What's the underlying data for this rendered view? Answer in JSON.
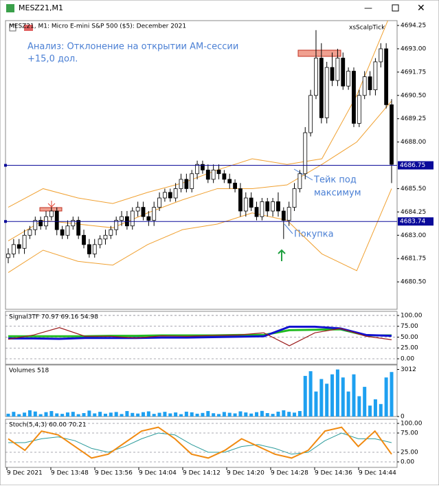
{
  "window": {
    "title": "MESZ21,M1"
  },
  "time_axis": [
    "9 Dec 2021",
    "9 Dec 13:48",
    "9 Dec 13:56",
    "9 Dec 14:04",
    "9 Dec 14:12",
    "9 Dec 14:20",
    "9 Dec 14:28",
    "9 Dec 14:36",
    "9 Dec 14:44"
  ],
  "annotations": {
    "analysis": [
      "Анализ: Отклонение на открытии АМ-сессии",
      "+15,0 дол."
    ],
    "take": [
      "Тейк под",
      "максимум"
    ],
    "buy": "Покупка"
  },
  "chart_data": [
    {
      "type": "candlestick",
      "title": "MESZ21, M1:  Micro E-mini S&P 500 ($5): December 2021",
      "indicator": "xsScalpTick",
      "ylim": [
        4679.03,
        4694.51
      ],
      "yticks": [
        4694.25,
        {
          "value": 4693,
          "label": "4693.00"
        },
        4691.75,
        {
          "value": 4690.5,
          "label": "4690.50"
        },
        4689.25,
        {
          "value": 4688,
          "label": "4688.00"
        },
        {
          "value": 4685.5,
          "label": "4685.50"
        },
        4684.25,
        {
          "value": 4683,
          "label": "4683.00"
        },
        4681.75,
        {
          "value": 4680.5,
          "label": "4680.50"
        }
      ],
      "hlines": [
        4686.75,
        4683.74
      ],
      "hline_color": "#0a0a9a",
      "up_color": "#ffffff",
      "down_color": "#000000",
      "candles": [
        [
          4681.8,
          4682.3,
          4681.5,
          4682.0
        ],
        [
          4682.0,
          4682.8,
          4681.8,
          4682.5
        ],
        [
          4682.5,
          4682.8,
          4682.0,
          4682.3
        ],
        [
          4682.3,
          4683.3,
          4682.0,
          4683.0
        ],
        [
          4683.0,
          4683.5,
          4682.8,
          4683.3
        ],
        [
          4683.3,
          4684.0,
          4683.0,
          4683.8
        ],
        [
          4683.8,
          4684.0,
          4683.3,
          4683.5
        ],
        [
          4683.5,
          4684.3,
          4683.3,
          4684.0
        ],
        [
          4684.0,
          4684.5,
          4683.8,
          4684.3
        ],
        [
          4684.3,
          4684.5,
          4683.0,
          4683.3
        ],
        [
          4683.3,
          4683.5,
          4682.8,
          4683.0
        ],
        [
          4683.0,
          4683.8,
          4682.8,
          4683.5
        ],
        [
          4683.5,
          4684.0,
          4683.3,
          4683.8
        ],
        [
          4683.8,
          4684.0,
          4682.8,
          4683.0
        ],
        [
          4683.0,
          4683.3,
          4682.3,
          4682.5
        ],
        [
          4682.5,
          4682.8,
          4681.8,
          4682.0
        ],
        [
          4682.0,
          4682.8,
          4681.8,
          4682.5
        ],
        [
          4682.5,
          4683.0,
          4682.3,
          4682.8
        ],
        [
          4682.8,
          4683.3,
          4682.5,
          4683.0
        ],
        [
          4683.0,
          4683.5,
          4682.8,
          4683.3
        ],
        [
          4683.3,
          4684.0,
          4683.0,
          4683.8
        ],
        [
          4683.8,
          4684.3,
          4683.5,
          4684.0
        ],
        [
          4684.0,
          4684.3,
          4683.3,
          4683.5
        ],
        [
          4683.5,
          4684.5,
          4683.3,
          4684.3
        ],
        [
          4684.3,
          4684.8,
          4684.0,
          4684.5
        ],
        [
          4684.5,
          4684.8,
          4683.8,
          4684.0
        ],
        [
          4684.0,
          4684.3,
          4683.5,
          4683.8
        ],
        [
          4683.8,
          4684.8,
          4683.5,
          4684.5
        ],
        [
          4684.5,
          4685.3,
          4684.3,
          4685.0
        ],
        [
          4685.0,
          4685.5,
          4684.8,
          4685.3
        ],
        [
          4685.3,
          4685.5,
          4684.8,
          4685.0
        ],
        [
          4685.0,
          4685.8,
          4684.8,
          4685.5
        ],
        [
          4685.5,
          4686.3,
          4685.3,
          4686.0
        ],
        [
          4686.0,
          4686.3,
          4685.3,
          4685.5
        ],
        [
          4685.5,
          4686.5,
          4685.3,
          4686.3
        ],
        [
          4686.3,
          4687.0,
          4686.0,
          4686.8
        ],
        [
          4686.8,
          4687.0,
          4686.3,
          4686.5
        ],
        [
          4686.5,
          4686.8,
          4685.8,
          4686.0
        ],
        [
          4686.0,
          4686.8,
          4685.8,
          4686.5
        ],
        [
          4686.5,
          4686.8,
          4686.0,
          4686.3
        ],
        [
          4686.3,
          4686.5,
          4685.8,
          4686.0
        ],
        [
          4686.0,
          4686.3,
          4685.5,
          4685.8
        ],
        [
          4685.8,
          4686.0,
          4685.3,
          4685.5
        ],
        [
          4685.5,
          4685.8,
          4684.0,
          4684.3
        ],
        [
          4684.3,
          4685.3,
          4684.0,
          4685.0
        ],
        [
          4685.0,
          4685.3,
          4684.3,
          4684.5
        ],
        [
          4684.5,
          4684.8,
          4683.8,
          4684.0
        ],
        [
          4684.0,
          4685.0,
          4683.8,
          4684.8
        ],
        [
          4684.8,
          4685.0,
          4684.0,
          4684.3
        ],
        [
          4684.3,
          4685.0,
          4684.0,
          4684.8
        ],
        [
          4684.8,
          4685.3,
          4684.0,
          4684.3
        ],
        [
          4684.3,
          4684.5,
          4682.8,
          4683.8
        ],
        [
          4683.8,
          4684.8,
          4683.5,
          4684.5
        ],
        [
          4684.5,
          4685.8,
          4684.3,
          4685.5
        ],
        [
          4685.5,
          4686.5,
          4685.3,
          4686.3
        ],
        [
          4686.3,
          4688.8,
          4686.0,
          4688.5
        ],
        [
          4688.5,
          4690.8,
          4688.3,
          4690.5
        ],
        [
          4690.5,
          4694.0,
          4690.3,
          4692.5
        ],
        [
          4692.5,
          4693.3,
          4689.0,
          4689.3
        ],
        [
          4689.3,
          4692.3,
          4689.0,
          4692.0
        ],
        [
          4692.0,
          4692.8,
          4691.0,
          4691.3
        ],
        [
          4691.3,
          4693.0,
          4691.0,
          4692.5
        ],
        [
          4692.5,
          4692.8,
          4690.8,
          4691.0
        ],
        [
          4691.0,
          4692.0,
          4690.8,
          4691.8
        ],
        [
          4691.8,
          4692.0,
          4688.8,
          4689.0
        ],
        [
          4689.0,
          4690.8,
          4688.8,
          4690.5
        ],
        [
          4690.5,
          4691.8,
          4690.3,
          4691.5
        ],
        [
          4691.5,
          4691.8,
          4690.5,
          4690.8
        ],
        [
          4690.8,
          4692.5,
          4690.5,
          4692.3
        ],
        [
          4692.3,
          4693.3,
          4692.0,
          4693.0
        ],
        [
          4693.0,
          4693.3,
          4689.8,
          4690.0
        ],
        [
          4690.0,
          4690.3,
          4685.8,
          4686.8
        ]
      ],
      "bands": [
        {
          "color": "#f0a030",
          "values": [
            4684.5,
            4685.5,
            4685.0,
            4684.7,
            4685.3,
            4685.8,
            4686.5,
            4687.1,
            4686.8,
            4687.1,
            4690.5,
            4695.0
          ]
        },
        {
          "color": "#f0a030",
          "values": [
            4682.7,
            4683.8,
            4683.6,
            4683.4,
            4684.2,
            4684.9,
            4685.5,
            4685.5,
            4685.7,
            4686.8,
            4688.0,
            4690.2
          ]
        },
        {
          "color": "#f0a030",
          "values": [
            4681.0,
            4682.2,
            4681.6,
            4681.4,
            4682.5,
            4683.3,
            4683.6,
            4684.2,
            4683.8,
            4682.0,
            4681.1,
            4685.5
          ]
        }
      ]
    },
    {
      "type": "line",
      "title": "Signal3TF 70.97 69.16 54.98",
      "ylim": [
        -12.7,
        109.5
      ],
      "yticks": [
        {
          "value": 100,
          "label": "100.00"
        },
        {
          "value": 75,
          "label": "75.00"
        },
        {
          "value": 50,
          "label": "50.00"
        },
        {
          "value": 25,
          "label": "25.00"
        },
        {
          "value": 0,
          "label": "0.00"
        }
      ],
      "series": [
        {
          "color": "#22bb22",
          "width": 3,
          "values": [
            52,
            52,
            52,
            52,
            53,
            53,
            54,
            54,
            54,
            55,
            55,
            66,
            67,
            68,
            54,
            54
          ]
        },
        {
          "color": "#1010d0",
          "width": 3,
          "values": [
            47,
            47,
            46,
            48,
            48,
            48,
            49,
            49,
            50,
            51,
            52,
            74,
            74,
            70,
            55,
            53
          ]
        },
        {
          "color": "#9a1a1a",
          "width": 1.2,
          "values": [
            45,
            55,
            72,
            52,
            52,
            48,
            53,
            52,
            54,
            55,
            60,
            30,
            60,
            70,
            52,
            44
          ]
        }
      ]
    },
    {
      "type": "bar",
      "title": "Volumes 518",
      "ylim": [
        0,
        3300
      ],
      "yticks": [
        3012,
        0
      ],
      "color": "#1ea0f0",
      "values": [
        180,
        300,
        150,
        250,
        400,
        320,
        150,
        280,
        350,
        200,
        170,
        260,
        300,
        150,
        220,
        380,
        200,
        300,
        180,
        250,
        290,
        160,
        350,
        230,
        190,
        280,
        330,
        170,
        240,
        300,
        200,
        260,
        150,
        310,
        270,
        180,
        230,
        350,
        210,
        160,
        290,
        240,
        200,
        330,
        260,
        190,
        280,
        360,
        220,
        170,
        310,
        400,
        300,
        250,
        350,
        2600,
        2900,
        1600,
        2400,
        2100,
        2700,
        3012,
        2500,
        1600,
        2700,
        1300,
        1900,
        700,
        1100,
        800,
        2500,
        2850
      ]
    },
    {
      "type": "line",
      "title": "Stoch(5,4,3) 60.00 70.21",
      "ylim": [
        -14.3,
        110.7
      ],
      "yticks": [
        {
          "value": 100,
          "label": "100.00"
        },
        {
          "value": 75,
          "label": "75.00"
        },
        {
          "value": 25,
          "label": "25.00"
        },
        {
          "value": 0,
          "label": "0.00"
        }
      ],
      "series": [
        {
          "color": "#2a9a9a",
          "width": 1,
          "values": [
            50,
            50,
            60,
            65,
            55,
            35,
            25,
            40,
            60,
            75,
            70,
            45,
            25,
            25,
            40,
            45,
            35,
            20,
            25,
            55,
            75,
            60,
            60,
            50
          ]
        },
        {
          "color": "#f08a10",
          "width": 2,
          "values": [
            60,
            30,
            80,
            70,
            40,
            10,
            20,
            50,
            80,
            90,
            60,
            20,
            10,
            30,
            60,
            40,
            20,
            10,
            30,
            80,
            90,
            40,
            80,
            20
          ]
        }
      ]
    }
  ]
}
